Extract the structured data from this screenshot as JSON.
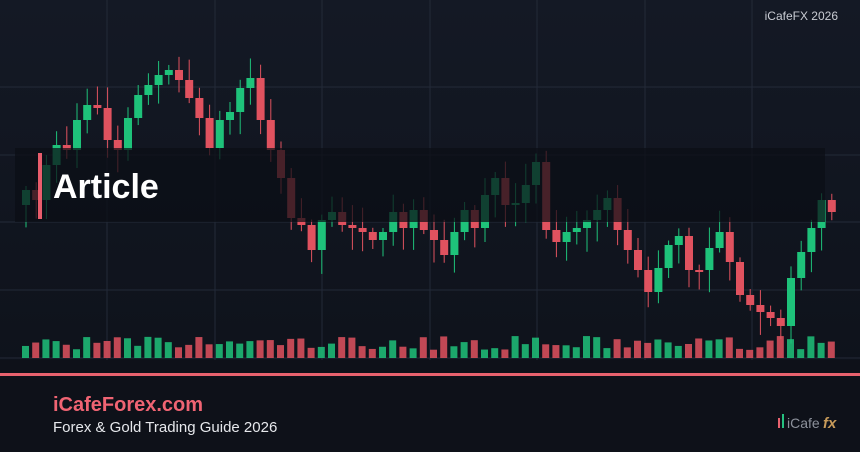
{
  "header": {
    "tag": "iCafeFX 2026"
  },
  "title": "Article",
  "footer": {
    "site": "iCafeForex.com",
    "subtitle": "Forex & Gold Trading Guide 2026",
    "logo": {
      "brand": "iCafe",
      "suffix": "fx"
    }
  }
}
